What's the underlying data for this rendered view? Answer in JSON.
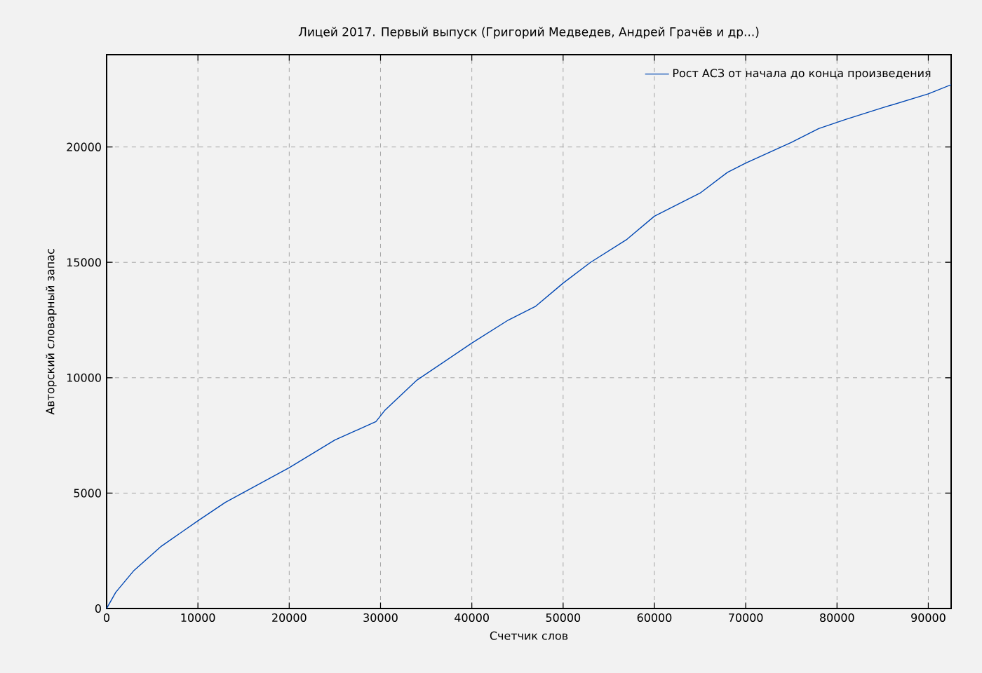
{
  "chart_data": {
    "type": "line",
    "title": "Лицей 2017. Первый выпуск (Григорий Медведев, Андрей Грачёв и др...)",
    "xlabel": "Счетчик слов",
    "ylabel": "Авторский словарный запас",
    "xlim": [
      0,
      92500
    ],
    "ylim": [
      0,
      24000
    ],
    "xticks": [
      0,
      10000,
      20000,
      30000,
      40000,
      50000,
      60000,
      70000,
      80000,
      90000
    ],
    "yticks": [
      0,
      5000,
      10000,
      15000,
      20000
    ],
    "grid": true,
    "legend": "top right",
    "line_style": "solid",
    "marker": "none",
    "x": [
      0,
      1000,
      3000,
      6000,
      10000,
      13000,
      20000,
      25000,
      29500,
      30500,
      34000,
      40000,
      44000,
      47000,
      50000,
      53000,
      57000,
      60000,
      65000,
      68000,
      70000,
      75000,
      78000,
      81000,
      85000,
      90000,
      92500
    ],
    "series": [
      {
        "name": "Рост АСЗ от начала до конца произведения",
        "color": "#0047b3",
        "values": [
          0,
          700,
          1650,
          2700,
          3800,
          4600,
          6100,
          7300,
          8100,
          8600,
          9900,
          11500,
          12500,
          13100,
          14100,
          15000,
          16000,
          17000,
          18000,
          18900,
          19300,
          20200,
          20800,
          21200,
          21700,
          22300,
          22700
        ]
      }
    ]
  }
}
